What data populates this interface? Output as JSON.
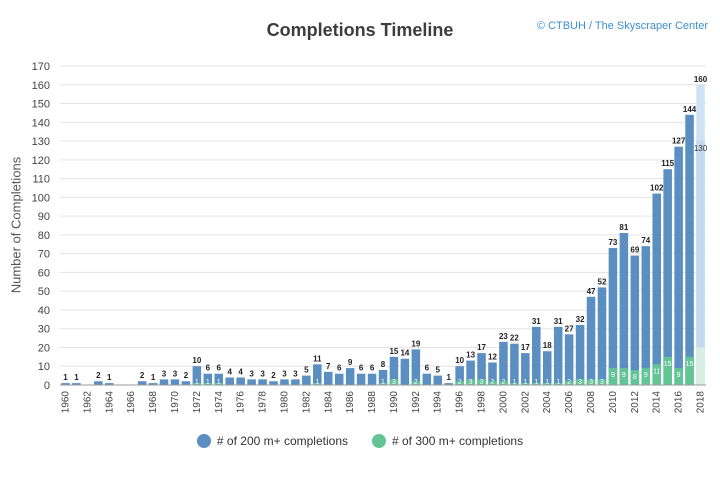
{
  "chart_data": {
    "type": "bar",
    "title": "Completions Timeline",
    "credit": "© CTBUH / The Skyscraper Center",
    "ylabel": "Number of Completions",
    "xlabel": "",
    "ylim": [
      0,
      170
    ],
    "yticks": [
      0,
      10,
      20,
      30,
      40,
      50,
      60,
      70,
      80,
      90,
      100,
      110,
      120,
      130,
      140,
      150,
      160,
      170
    ],
    "grid": true,
    "legend_position": "bottom",
    "categories": [
      1960,
      1961,
      1962,
      1963,
      1964,
      1965,
      1966,
      1967,
      1968,
      1969,
      1970,
      1971,
      1972,
      1973,
      1974,
      1975,
      1976,
      1977,
      1978,
      1979,
      1980,
      1981,
      1982,
      1983,
      1984,
      1985,
      1986,
      1987,
      1988,
      1989,
      1990,
      1991,
      1992,
      1993,
      1994,
      1995,
      1996,
      1997,
      1998,
      1999,
      2000,
      2001,
      2002,
      2003,
      2004,
      2005,
      2006,
      2007,
      2008,
      2009,
      2010,
      2011,
      2012,
      2013,
      2014,
      2015,
      2016,
      2017,
      2018
    ],
    "xtick_labels": [
      "1960",
      "1962",
      "1964",
      "1966",
      "1968",
      "1970",
      "1972",
      "1974",
      "1976",
      "1978",
      "1980",
      "1982",
      "1984",
      "1986",
      "1988",
      "1990",
      "1992",
      "1994",
      "1996",
      "1998",
      "2000",
      "2002",
      "2004",
      "2006",
      "2008",
      "2010",
      "2012",
      "2014",
      "2016",
      "2018"
    ],
    "series": [
      {
        "name": "# of 200 m+ completions",
        "color": "#5b8fc1",
        "values": [
          1,
          1,
          0,
          2,
          1,
          0,
          0,
          2,
          1,
          3,
          3,
          2,
          10,
          6,
          6,
          4,
          4,
          3,
          3,
          2,
          3,
          3,
          5,
          11,
          7,
          6,
          9,
          6,
          6,
          8,
          15,
          14,
          19,
          6,
          5,
          1,
          10,
          13,
          17,
          12,
          23,
          22,
          17,
          31,
          18,
          31,
          27,
          32,
          47,
          52,
          73,
          81,
          69,
          74,
          102,
          115,
          127,
          144,
          160
        ],
        "value_labels": [
          "1",
          "1",
          "",
          "2",
          "1",
          "",
          "",
          "2",
          "1",
          "3",
          "3",
          "2",
          "10",
          "6",
          "6",
          "4",
          "4",
          "3",
          "3",
          "2",
          "3",
          "3",
          "5",
          "11",
          "7",
          "6",
          "9",
          "6",
          "6",
          "8",
          "15",
          "14",
          "19",
          "6",
          "5",
          "1",
          "10",
          "13",
          "17",
          "12",
          "23",
          "22",
          "17",
          "31",
          "18",
          "31",
          "27",
          "32",
          "47",
          "52",
          "73",
          "81",
          "69",
          "74",
          "102",
          "115",
          "127",
          "144",
          "160"
        ]
      },
      {
        "name": "# of 300 m+ completions",
        "color": "#63c596",
        "values": [
          0,
          0,
          0,
          0,
          0,
          0,
          0,
          0,
          0,
          0,
          0,
          0,
          1,
          1,
          1,
          0,
          0,
          0,
          0,
          0,
          0,
          0,
          0,
          1,
          0,
          0,
          0,
          0,
          0,
          1,
          3,
          0,
          2,
          0,
          0,
          0,
          2,
          3,
          3,
          2,
          2,
          1,
          1,
          1,
          1,
          1,
          2,
          3,
          3,
          3,
          9,
          9,
          8,
          9,
          11,
          15,
          9,
          15,
          20
        ],
        "value_labels": [
          "",
          "",
          "",
          "",
          "",
          "",
          "",
          "",
          "",
          "",
          "",
          "",
          "1",
          "1",
          "1",
          "",
          "",
          "",
          "",
          "",
          "",
          "",
          "",
          "1",
          "",
          "",
          "",
          "",
          "",
          "1",
          "3",
          "",
          "2",
          "",
          "",
          "",
          "2",
          "3",
          "3",
          "2",
          "2",
          "1",
          "1",
          "1",
          "1",
          "1",
          "2",
          "3",
          "3",
          "3",
          "9",
          "9",
          "8",
          "9",
          "11",
          "15",
          "9",
          "15",
          ""
        ]
      }
    ],
    "forecast_year": 2018,
    "forecast_300_shown": 130
  }
}
